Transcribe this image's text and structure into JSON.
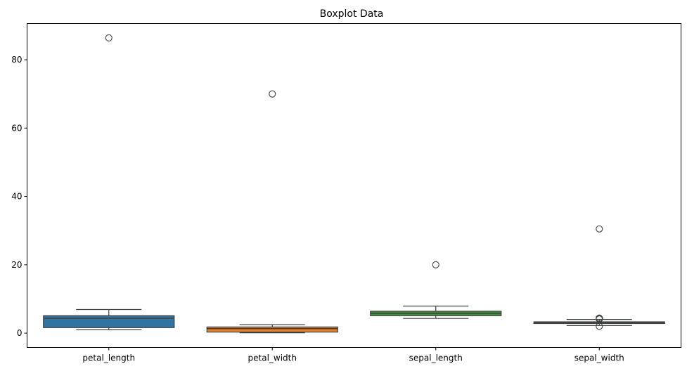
{
  "chart_data": {
    "type": "box",
    "title": "Boxplot Data",
    "xlabel": "",
    "ylabel": "",
    "ylim": [
      -4.2,
      90.6
    ],
    "yticks": [
      0,
      20,
      40,
      60,
      80
    ],
    "categories": [
      "petal_length",
      "petal_width",
      "sepal_length",
      "sepal_width"
    ],
    "colors": [
      "#3274a1",
      "#e1812c",
      "#3a923a",
      "#3274a1"
    ],
    "boxes": [
      {
        "name": "petal_length",
        "whisker_low": 1.0,
        "q1": 1.6,
        "median": 4.35,
        "q3": 5.1,
        "whisker_high": 6.9,
        "outliers": [
          86.4
        ]
      },
      {
        "name": "petal_width",
        "whisker_low": 0.1,
        "q1": 0.3,
        "median": 1.3,
        "q3": 1.8,
        "whisker_high": 2.5,
        "outliers": [
          70.0
        ]
      },
      {
        "name": "sepal_length",
        "whisker_low": 4.3,
        "q1": 5.1,
        "median": 5.8,
        "q3": 6.4,
        "whisker_high": 7.9,
        "outliers": [
          20.0
        ]
      },
      {
        "name": "sepal_width",
        "whisker_low": 2.2,
        "q1": 2.8,
        "median": 3.0,
        "q3": 3.3,
        "whisker_high": 4.0,
        "outliers": [
          30.5,
          4.4,
          4.1,
          4.2,
          2.0
        ]
      }
    ],
    "grid": false,
    "legend": "none"
  }
}
